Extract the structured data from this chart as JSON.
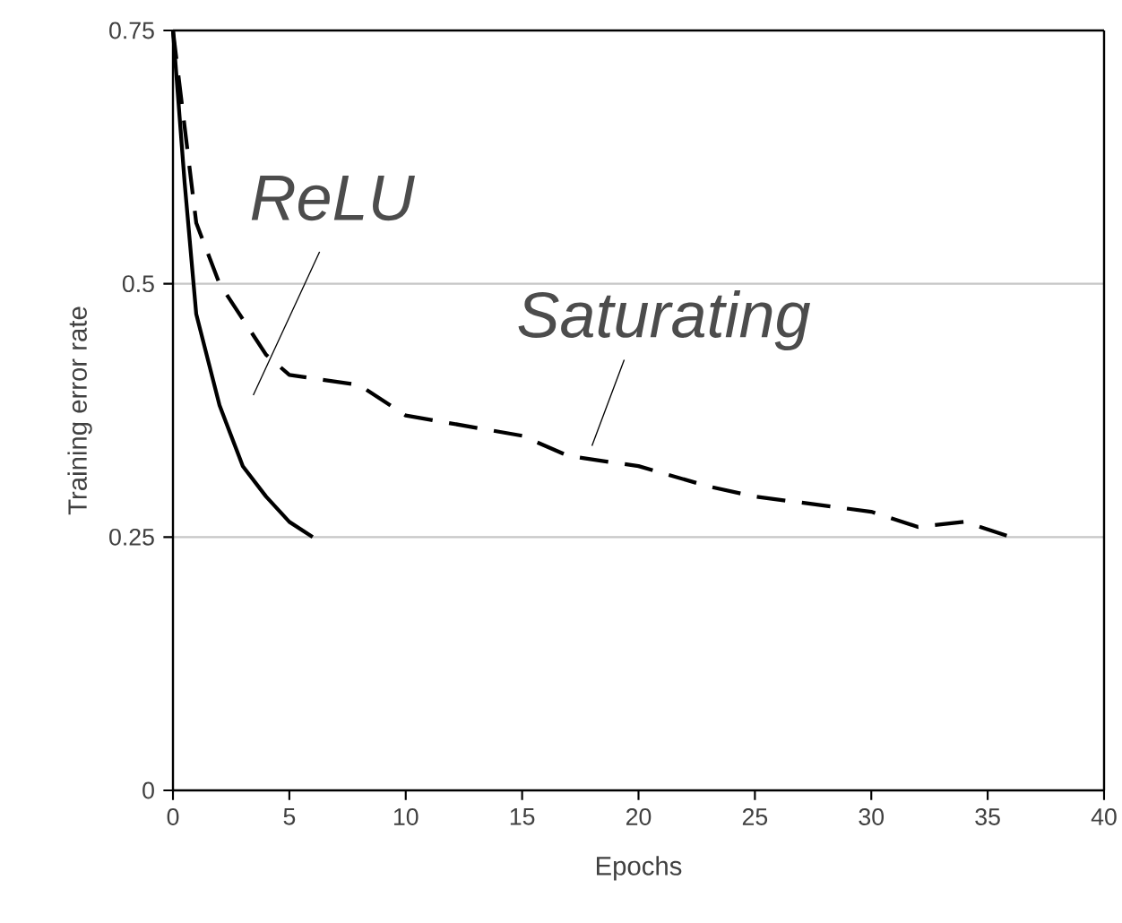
{
  "chart_data": {
    "type": "line",
    "xlabel": "Epochs",
    "ylabel": "Training error rate",
    "xlim": [
      0,
      40
    ],
    "ylim": [
      0,
      0.75
    ],
    "xticks": [
      0,
      5,
      10,
      15,
      20,
      25,
      30,
      35,
      40
    ],
    "yticks": [
      0,
      0.25,
      0.5,
      0.75
    ],
    "grid": "y",
    "series": [
      {
        "name": "ReLU",
        "color": "#000000",
        "line_style": "solid",
        "x": [
          0,
          0.5,
          1,
          2,
          3,
          4,
          5,
          6
        ],
        "values": [
          0.75,
          0.6,
          0.47,
          0.38,
          0.32,
          0.29,
          0.265,
          0.25
        ]
      },
      {
        "name": "Saturating",
        "color": "#000000",
        "line_style": "dashed",
        "x": [
          0,
          1,
          2,
          4,
          5,
          8,
          10,
          15,
          17,
          20,
          23,
          25,
          30,
          32,
          34,
          36
        ],
        "values": [
          0.75,
          0.56,
          0.5,
          0.43,
          0.41,
          0.4,
          0.37,
          0.35,
          0.33,
          0.32,
          0.3,
          0.29,
          0.275,
          0.26,
          0.265,
          0.25
        ]
      }
    ]
  }
}
